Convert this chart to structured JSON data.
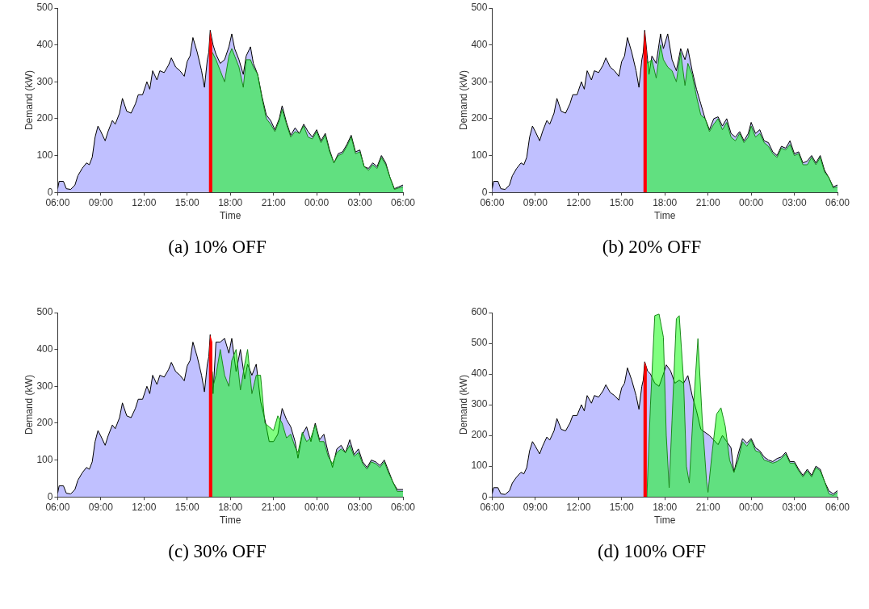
{
  "chart_data": [
    {
      "type": "area",
      "title": "(a) 10% OFF",
      "xlabel": "Time",
      "ylabel": "Demand (kW)",
      "xlim": [
        "2000-01-01T06:00",
        "2000-01-02T06:00"
      ],
      "ylim": [
        0,
        500
      ],
      "xticks": [
        {
          "value": "2000-01-01T06:00",
          "label": "06:00"
        },
        {
          "value": "2000-01-01T09:00",
          "label": "09:00"
        },
        {
          "value": "2000-01-01T12:00",
          "label": "12:00"
        },
        {
          "value": "2000-01-01T15:00",
          "label": "15:00"
        },
        {
          "value": "2000-01-01T18:00",
          "label": "18:00"
        },
        {
          "value": "2000-01-01T21:00",
          "label": "21:00"
        },
        {
          "value": "2000-01-02T00:00",
          "label": "00:00"
        },
        {
          "value": "2000-01-02T03:00",
          "label": "03:00"
        },
        {
          "value": "2000-01-02T06:00",
          "label": "06:00"
        }
      ],
      "yticks": [
        0,
        100,
        200,
        300,
        400,
        500
      ],
      "grid": false,
      "legend": false,
      "series": [
        {
          "color": "#c0c0ff",
          "x": [
            "2000-01-01T06:00",
            "2000-01-01T06:06",
            "2000-01-01T06:24",
            "2000-01-01T06:36",
            "2000-01-01T06:54",
            "2000-01-01T07:12",
            "2000-01-01T07:24",
            "2000-01-01T07:42",
            "2000-01-01T08:00",
            "2000-01-01T08:12",
            "2000-01-01T08:24",
            "2000-01-01T08:36",
            "2000-01-01T08:48",
            "2000-01-01T09:00",
            "2000-01-01T09:18",
            "2000-01-01T09:30",
            "2000-01-01T09:48",
            "2000-01-01T10:00",
            "2000-01-01T10:18",
            "2000-01-01T10:30",
            "2000-01-01T10:48",
            "2000-01-01T11:06",
            "2000-01-01T11:24",
            "2000-01-01T11:36",
            "2000-01-01T11:54",
            "2000-01-01T12:12",
            "2000-01-01T12:24",
            "2000-01-01T12:36",
            "2000-01-01T12:54",
            "2000-01-01T13:06",
            "2000-01-01T13:24",
            "2000-01-01T13:42",
            "2000-01-01T13:54",
            "2000-01-01T14:12",
            "2000-01-01T14:30",
            "2000-01-01T14:48",
            "2000-01-01T15:00",
            "2000-01-01T15:12",
            "2000-01-01T15:24",
            "2000-01-01T15:42",
            "2000-01-01T16:00",
            "2000-01-01T16:12",
            "2000-01-01T16:24",
            "2000-01-01T16:30",
            "2000-01-01T16:36",
            "2000-01-01T16:48",
            "2000-01-01T17:00",
            "2000-01-01T17:18",
            "2000-01-01T17:36",
            "2000-01-01T17:54",
            "2000-01-01T18:06",
            "2000-01-01T18:18",
            "2000-01-01T18:36",
            "2000-01-01T18:54",
            "2000-01-01T19:06",
            "2000-01-01T19:24",
            "2000-01-01T19:36",
            "2000-01-01T19:54",
            "2000-01-01T20:12",
            "2000-01-01T20:30",
            "2000-01-01T20:48",
            "2000-01-01T21:06",
            "2000-01-01T21:24",
            "2000-01-01T21:36",
            "2000-01-01T21:54",
            "2000-01-01T22:12",
            "2000-01-01T22:30",
            "2000-01-01T22:48",
            "2000-01-01T23:06",
            "2000-01-01T23:24",
            "2000-01-01T23:42",
            "2000-01-02T00:00",
            "2000-01-02T00:18",
            "2000-01-02T00:36",
            "2000-01-02T00:54",
            "2000-01-02T01:12",
            "2000-01-02T01:30",
            "2000-01-02T01:48",
            "2000-01-02T02:06",
            "2000-01-02T02:24",
            "2000-01-02T02:42",
            "2000-01-02T03:00",
            "2000-01-02T03:18",
            "2000-01-02T03:36",
            "2000-01-02T03:54",
            "2000-01-02T04:12",
            "2000-01-02T04:30",
            "2000-01-02T04:48",
            "2000-01-02T05:06",
            "2000-01-02T05:24",
            "2000-01-02T05:42",
            "2000-01-02T06:00"
          ],
          "values": [
            10,
            30,
            30,
            10,
            8,
            20,
            45,
            65,
            80,
            75,
            95,
            150,
            180,
            165,
            140,
            165,
            195,
            185,
            215,
            255,
            220,
            215,
            240,
            265,
            265,
            300,
            280,
            330,
            305,
            330,
            325,
            345,
            365,
            340,
            330,
            315,
            355,
            370,
            420,
            380,
            330,
            285,
            360,
            380,
            440,
            400,
            375,
            350,
            360,
            395,
            430,
            390,
            360,
            320,
            370,
            395,
            350,
            320,
            260,
            210,
            195,
            170,
            200,
            235,
            190,
            155,
            175,
            160,
            185,
            165,
            150,
            170,
            140,
            160,
            115,
            80,
            105,
            110,
            130,
            155,
            110,
            115,
            70,
            65,
            80,
            70,
            100,
            80,
            40,
            10,
            15,
            20
          ]
        },
        {
          "color": "#ff0000",
          "x": [
            "2000-01-01T16:30",
            "2000-01-01T16:36",
            "2000-01-01T16:45"
          ],
          "values": [
            380,
            440,
            400
          ]
        },
        {
          "color": "#80ff80",
          "x": [
            "2000-01-01T16:45",
            "2000-01-01T17:00",
            "2000-01-01T17:18",
            "2000-01-01T17:36",
            "2000-01-01T17:54",
            "2000-01-01T18:06",
            "2000-01-01T18:18",
            "2000-01-01T18:36",
            "2000-01-01T18:54",
            "2000-01-01T19:06",
            "2000-01-01T19:24",
            "2000-01-01T19:36",
            "2000-01-01T19:54",
            "2000-01-01T20:12",
            "2000-01-01T20:30",
            "2000-01-01T20:48",
            "2000-01-01T21:06",
            "2000-01-01T21:24",
            "2000-01-01T21:36",
            "2000-01-01T21:54",
            "2000-01-01T22:12",
            "2000-01-01T22:30",
            "2000-01-01T22:48",
            "2000-01-01T23:06",
            "2000-01-01T23:24",
            "2000-01-01T23:42",
            "2000-01-02T00:00",
            "2000-01-02T00:18",
            "2000-01-02T00:36",
            "2000-01-02T00:54",
            "2000-01-02T01:12",
            "2000-01-02T01:30",
            "2000-01-02T01:48",
            "2000-01-02T02:06",
            "2000-01-02T02:24",
            "2000-01-02T02:42",
            "2000-01-02T03:00",
            "2000-01-02T03:18",
            "2000-01-02T03:36",
            "2000-01-02T03:54",
            "2000-01-02T04:12",
            "2000-01-02T04:30",
            "2000-01-02T04:48",
            "2000-01-02T05:06",
            "2000-01-02T05:24",
            "2000-01-02T05:42",
            "2000-01-02T06:00"
          ],
          "values": [
            380,
            360,
            330,
            300,
            370,
            390,
            370,
            340,
            285,
            360,
            360,
            340,
            320,
            255,
            200,
            185,
            165,
            195,
            225,
            185,
            150,
            165,
            160,
            180,
            150,
            145,
            165,
            135,
            155,
            110,
            80,
            100,
            105,
            125,
            150,
            105,
            110,
            70,
            60,
            75,
            65,
            95,
            75,
            40,
            8,
            12,
            15
          ]
        }
      ]
    },
    {
      "type": "area",
      "title": "(b) 20% OFF",
      "xlabel": "Time",
      "ylabel": "Demand (kW)",
      "xlim": [
        "2000-01-01T06:00",
        "2000-01-02T06:00"
      ],
      "ylim": [
        0,
        500
      ],
      "xticks": [
        {
          "value": "2000-01-01T06:00",
          "label": "06:00"
        },
        {
          "value": "2000-01-01T09:00",
          "label": "09:00"
        },
        {
          "value": "2000-01-01T12:00",
          "label": "12:00"
        },
        {
          "value": "2000-01-01T15:00",
          "label": "15:00"
        },
        {
          "value": "2000-01-01T18:00",
          "label": "18:00"
        },
        {
          "value": "2000-01-01T21:00",
          "label": "21:00"
        },
        {
          "value": "2000-01-02T00:00",
          "label": "00:00"
        },
        {
          "value": "2000-01-02T03:00",
          "label": "03:00"
        },
        {
          "value": "2000-01-02T06:00",
          "label": "06:00"
        }
      ],
      "yticks": [
        0,
        100,
        200,
        300,
        400,
        500
      ],
      "grid": false,
      "legend": false,
      "series": [
        {
          "color": "#c0c0ff",
          "x": [
            "2000-01-01T06:00",
            "2000-01-01T06:06",
            "2000-01-01T06:24",
            "2000-01-01T06:36",
            "2000-01-01T06:54",
            "2000-01-01T07:12",
            "2000-01-01T07:24",
            "2000-01-01T07:42",
            "2000-01-01T08:00",
            "2000-01-01T08:12",
            "2000-01-01T08:24",
            "2000-01-01T08:36",
            "2000-01-01T08:48",
            "2000-01-01T09:00",
            "2000-01-01T09:18",
            "2000-01-01T09:30",
            "2000-01-01T09:48",
            "2000-01-01T10:00",
            "2000-01-01T10:18",
            "2000-01-01T10:30",
            "2000-01-01T10:48",
            "2000-01-01T11:06",
            "2000-01-01T11:24",
            "2000-01-01T11:36",
            "2000-01-01T11:54",
            "2000-01-01T12:12",
            "2000-01-01T12:24",
            "2000-01-01T12:36",
            "2000-01-01T12:54",
            "2000-01-01T13:06",
            "2000-01-01T13:24",
            "2000-01-01T13:42",
            "2000-01-01T13:54",
            "2000-01-01T14:12",
            "2000-01-01T14:30",
            "2000-01-01T14:48",
            "2000-01-01T15:00",
            "2000-01-01T15:12",
            "2000-01-01T15:24",
            "2000-01-01T15:42",
            "2000-01-01T16:00",
            "2000-01-01T16:12",
            "2000-01-01T16:24",
            "2000-01-01T16:30",
            "2000-01-01T16:36",
            "2000-01-01T16:48",
            "2000-01-01T16:54",
            "2000-01-01T17:06",
            "2000-01-01T17:24",
            "2000-01-01T17:42",
            "2000-01-01T17:54",
            "2000-01-01T18:12",
            "2000-01-01T18:30",
            "2000-01-01T18:48",
            "2000-01-01T19:06",
            "2000-01-01T19:24",
            "2000-01-01T19:36",
            "2000-01-01T19:54",
            "2000-01-01T20:12",
            "2000-01-01T20:30",
            "2000-01-01T20:48",
            "2000-01-01T21:06",
            "2000-01-01T21:24",
            "2000-01-01T21:42",
            "2000-01-01T22:00",
            "2000-01-01T22:18",
            "2000-01-01T22:36",
            "2000-01-01T22:54",
            "2000-01-01T23:12",
            "2000-01-01T23:30",
            "2000-01-01T23:48",
            "2000-01-02T00:00",
            "2000-01-02T00:18",
            "2000-01-02T00:36",
            "2000-01-02T00:54",
            "2000-01-02T01:12",
            "2000-01-02T01:30",
            "2000-01-02T01:48",
            "2000-01-02T02:06",
            "2000-01-02T02:24",
            "2000-01-02T02:42",
            "2000-01-02T03:00",
            "2000-01-02T03:18",
            "2000-01-02T03:36",
            "2000-01-02T03:54",
            "2000-01-02T04:12",
            "2000-01-02T04:30",
            "2000-01-02T04:48",
            "2000-01-02T05:06",
            "2000-01-02T05:24",
            "2000-01-02T05:42",
            "2000-01-02T06:00"
          ],
          "values": [
            10,
            30,
            30,
            10,
            8,
            20,
            45,
            65,
            80,
            75,
            95,
            150,
            180,
            165,
            140,
            165,
            195,
            185,
            215,
            255,
            220,
            215,
            240,
            265,
            265,
            300,
            280,
            330,
            305,
            330,
            325,
            345,
            365,
            340,
            330,
            315,
            355,
            370,
            420,
            380,
            330,
            285,
            360,
            380,
            440,
            360,
            320,
            370,
            350,
            430,
            390,
            430,
            360,
            330,
            390,
            360,
            390,
            330,
            280,
            240,
            200,
            170,
            200,
            205,
            180,
            200,
            160,
            150,
            165,
            140,
            160,
            190,
            160,
            170,
            140,
            135,
            110,
            100,
            125,
            120,
            140,
            105,
            110,
            80,
            85,
            100,
            80,
            100,
            60,
            40,
            15,
            20
          ]
        },
        {
          "color": "#ff0000",
          "x": [
            "2000-01-01T16:30",
            "2000-01-01T16:36",
            "2000-01-01T16:45"
          ],
          "values": [
            380,
            440,
            380
          ]
        },
        {
          "color": "#80ff80",
          "x": [
            "2000-01-01T16:45",
            "2000-01-01T16:48",
            "2000-01-01T17:06",
            "2000-01-01T17:24",
            "2000-01-01T17:42",
            "2000-01-01T17:54",
            "2000-01-01T18:12",
            "2000-01-01T18:30",
            "2000-01-01T18:48",
            "2000-01-01T19:06",
            "2000-01-01T19:24",
            "2000-01-01T19:36",
            "2000-01-01T19:54",
            "2000-01-01T20:12",
            "2000-01-01T20:30",
            "2000-01-01T20:48",
            "2000-01-01T21:06",
            "2000-01-01T21:24",
            "2000-01-01T21:42",
            "2000-01-01T22:00",
            "2000-01-01T22:18",
            "2000-01-01T22:36",
            "2000-01-01T22:54",
            "2000-01-01T23:12",
            "2000-01-01T23:30",
            "2000-01-01T23:48",
            "2000-01-02T00:00",
            "2000-01-02T00:18",
            "2000-01-02T00:36",
            "2000-01-02T00:54",
            "2000-01-02T01:12",
            "2000-01-02T01:30",
            "2000-01-02T01:48",
            "2000-01-02T02:06",
            "2000-01-02T02:24",
            "2000-01-02T02:42",
            "2000-01-02T03:00",
            "2000-01-02T03:18",
            "2000-01-02T03:36",
            "2000-01-02T03:54",
            "2000-01-02T04:12",
            "2000-01-02T04:30",
            "2000-01-02T04:48",
            "2000-01-02T05:06",
            "2000-01-02T05:24",
            "2000-01-02T05:42",
            "2000-01-02T06:00"
          ],
          "values": [
            360,
            350,
            360,
            310,
            400,
            360,
            340,
            330,
            300,
            380,
            290,
            350,
            320,
            260,
            210,
            200,
            165,
            185,
            200,
            170,
            190,
            150,
            140,
            160,
            135,
            150,
            180,
            150,
            160,
            135,
            125,
            105,
            95,
            120,
            115,
            130,
            100,
            105,
            75,
            75,
            95,
            75,
            95,
            55,
            40,
            12,
            15
          ]
        }
      ]
    },
    {
      "type": "area",
      "title": "(c) 30% OFF",
      "xlabel": "Time",
      "ylabel": "Demand (kW)",
      "xlim": [
        "2000-01-01T06:00",
        "2000-01-02T06:00"
      ],
      "ylim": [
        0,
        500
      ],
      "xticks": [
        {
          "value": "2000-01-01T06:00",
          "label": "06:00"
        },
        {
          "value": "2000-01-01T09:00",
          "label": "09:00"
        },
        {
          "value": "2000-01-01T12:00",
          "label": "12:00"
        },
        {
          "value": "2000-01-01T15:00",
          "label": "15:00"
        },
        {
          "value": "2000-01-01T18:00",
          "label": "18:00"
        },
        {
          "value": "2000-01-01T21:00",
          "label": "21:00"
        },
        {
          "value": "2000-01-02T00:00",
          "label": "00:00"
        },
        {
          "value": "2000-01-02T03:00",
          "label": "03:00"
        },
        {
          "value": "2000-01-02T06:00",
          "label": "06:00"
        }
      ],
      "yticks": [
        0,
        100,
        200,
        300,
        400,
        500
      ],
      "grid": false,
      "legend": false,
      "series": [
        {
          "color": "#c0c0ff",
          "x": [
            "2000-01-01T06:00",
            "2000-01-01T06:06",
            "2000-01-01T06:24",
            "2000-01-01T06:36",
            "2000-01-01T06:54",
            "2000-01-01T07:12",
            "2000-01-01T07:24",
            "2000-01-01T07:42",
            "2000-01-01T08:00",
            "2000-01-01T08:12",
            "2000-01-01T08:24",
            "2000-01-01T08:36",
            "2000-01-01T08:48",
            "2000-01-01T09:00",
            "2000-01-01T09:18",
            "2000-01-01T09:30",
            "2000-01-01T09:48",
            "2000-01-01T10:00",
            "2000-01-01T10:18",
            "2000-01-01T10:30",
            "2000-01-01T10:48",
            "2000-01-01T11:06",
            "2000-01-01T11:24",
            "2000-01-01T11:36",
            "2000-01-01T11:54",
            "2000-01-01T12:12",
            "2000-01-01T12:24",
            "2000-01-01T12:36",
            "2000-01-01T12:54",
            "2000-01-01T13:06",
            "2000-01-01T13:24",
            "2000-01-01T13:42",
            "2000-01-01T13:54",
            "2000-01-01T14:12",
            "2000-01-01T14:30",
            "2000-01-01T14:48",
            "2000-01-01T15:00",
            "2000-01-01T15:12",
            "2000-01-01T15:24",
            "2000-01-01T15:42",
            "2000-01-01T16:00",
            "2000-01-01T16:12",
            "2000-01-01T16:24",
            "2000-01-01T16:30",
            "2000-01-01T16:36",
            "2000-01-01T16:48",
            "2000-01-01T17:00",
            "2000-01-01T17:18",
            "2000-01-01T17:36",
            "2000-01-01T17:54",
            "2000-01-01T18:06",
            "2000-01-01T18:24",
            "2000-01-01T18:42",
            "2000-01-01T19:00",
            "2000-01-01T19:12",
            "2000-01-01T19:30",
            "2000-01-01T19:48",
            "2000-01-01T20:06",
            "2000-01-01T20:24",
            "2000-01-01T20:42",
            "2000-01-01T21:00",
            "2000-01-01T21:18",
            "2000-01-01T21:36",
            "2000-01-01T21:54",
            "2000-01-01T22:12",
            "2000-01-01T22:30",
            "2000-01-01T22:42",
            "2000-01-01T23:00",
            "2000-01-01T23:18",
            "2000-01-01T23:36",
            "2000-01-01T23:54",
            "2000-01-02T00:12",
            "2000-01-02T00:30",
            "2000-01-02T00:48",
            "2000-01-02T01:06",
            "2000-01-02T01:24",
            "2000-01-02T01:42",
            "2000-01-02T02:00",
            "2000-01-02T02:18",
            "2000-01-02T02:36",
            "2000-01-02T02:54",
            "2000-01-02T03:12",
            "2000-01-02T03:30",
            "2000-01-02T03:48",
            "2000-01-02T04:06",
            "2000-01-02T04:24",
            "2000-01-02T04:42",
            "2000-01-02T05:00",
            "2000-01-02T05:18",
            "2000-01-02T05:36",
            "2000-01-02T06:00"
          ],
          "values": [
            10,
            30,
            30,
            10,
            8,
            20,
            45,
            65,
            80,
            75,
            95,
            150,
            180,
            165,
            140,
            165,
            195,
            185,
            215,
            255,
            220,
            215,
            240,
            265,
            265,
            300,
            280,
            330,
            305,
            330,
            325,
            345,
            365,
            340,
            330,
            315,
            355,
            370,
            420,
            380,
            330,
            285,
            360,
            380,
            440,
            280,
            420,
            420,
            430,
            390,
            430,
            340,
            400,
            320,
            360,
            330,
            360,
            260,
            210,
            150,
            150,
            170,
            240,
            210,
            190,
            150,
            105,
            170,
            190,
            150,
            200,
            155,
            170,
            120,
            80,
            130,
            140,
            120,
            155,
            115,
            130,
            95,
            80,
            100,
            95,
            85,
            100,
            70,
            40,
            20,
            20
          ]
        },
        {
          "color": "#ff0000",
          "x": [
            "2000-01-01T16:30",
            "2000-01-01T16:36",
            "2000-01-01T16:45"
          ],
          "values": [
            380,
            440,
            420
          ]
        },
        {
          "color": "#80ff80",
          "x": [
            "2000-01-01T16:45",
            "2000-01-01T16:48",
            "2000-01-01T17:00",
            "2000-01-01T17:18",
            "2000-01-01T17:36",
            "2000-01-01T17:54",
            "2000-01-01T18:06",
            "2000-01-01T18:24",
            "2000-01-01T18:42",
            "2000-01-01T19:00",
            "2000-01-01T19:12",
            "2000-01-01T19:30",
            "2000-01-01T19:48",
            "2000-01-01T20:06",
            "2000-01-01T20:24",
            "2000-01-01T20:42",
            "2000-01-01T21:00",
            "2000-01-01T21:18",
            "2000-01-01T21:36",
            "2000-01-01T21:54",
            "2000-01-01T22:12",
            "2000-01-01T22:30",
            "2000-01-01T22:42",
            "2000-01-01T23:00",
            "2000-01-01T23:18",
            "2000-01-01T23:36",
            "2000-01-01T23:54",
            "2000-01-02T00:12",
            "2000-01-02T00:30",
            "2000-01-02T00:48",
            "2000-01-02T01:06",
            "2000-01-02T01:24",
            "2000-01-02T01:42",
            "2000-01-02T02:00",
            "2000-01-02T02:18",
            "2000-01-02T02:36",
            "2000-01-02T02:54",
            "2000-01-02T03:12",
            "2000-01-02T03:30",
            "2000-01-02T03:48",
            "2000-01-02T04:06",
            "2000-01-02T04:24",
            "2000-01-02T04:42",
            "2000-01-02T05:00",
            "2000-01-02T05:18",
            "2000-01-02T05:36",
            "2000-01-02T06:00"
          ],
          "values": [
            340,
            300,
            330,
            400,
            330,
            300,
            370,
            400,
            290,
            360,
            400,
            280,
            330,
            330,
            200,
            190,
            180,
            220,
            200,
            160,
            170,
            135,
            120,
            175,
            150,
            160,
            195,
            150,
            150,
            110,
            90,
            120,
            130,
            120,
            140,
            110,
            120,
            90,
            75,
            95,
            90,
            80,
            95,
            65,
            40,
            15,
            15
          ]
        }
      ]
    },
    {
      "type": "area",
      "title": "(d) 100% OFF",
      "xlabel": "Time",
      "ylabel": "Demand (kW)",
      "xlim": [
        "2000-01-01T06:00",
        "2000-01-02T06:00"
      ],
      "ylim": [
        0,
        600
      ],
      "xticks": [
        {
          "value": "2000-01-01T06:00",
          "label": "06:00"
        },
        {
          "value": "2000-01-01T09:00",
          "label": "09:00"
        },
        {
          "value": "2000-01-01T12:00",
          "label": "12:00"
        },
        {
          "value": "2000-01-01T15:00",
          "label": "15:00"
        },
        {
          "value": "2000-01-01T18:00",
          "label": "18:00"
        },
        {
          "value": "2000-01-01T21:00",
          "label": "21:00"
        },
        {
          "value": "2000-01-02T00:00",
          "label": "00:00"
        },
        {
          "value": "2000-01-02T03:00",
          "label": "03:00"
        },
        {
          "value": "2000-01-02T06:00",
          "label": "06:00"
        }
      ],
      "yticks": [
        0,
        100,
        200,
        300,
        400,
        500,
        600
      ],
      "grid": false,
      "legend": false,
      "series": [
        {
          "color": "#c0c0ff",
          "x": [
            "2000-01-01T06:00",
            "2000-01-01T06:06",
            "2000-01-01T06:24",
            "2000-01-01T06:36",
            "2000-01-01T06:54",
            "2000-01-01T07:12",
            "2000-01-01T07:24",
            "2000-01-01T07:42",
            "2000-01-01T08:00",
            "2000-01-01T08:12",
            "2000-01-01T08:24",
            "2000-01-01T08:36",
            "2000-01-01T08:48",
            "2000-01-01T09:00",
            "2000-01-01T09:18",
            "2000-01-01T09:30",
            "2000-01-01T09:48",
            "2000-01-01T10:00",
            "2000-01-01T10:18",
            "2000-01-01T10:30",
            "2000-01-01T10:48",
            "2000-01-01T11:06",
            "2000-01-01T11:24",
            "2000-01-01T11:36",
            "2000-01-01T11:54",
            "2000-01-01T12:12",
            "2000-01-01T12:24",
            "2000-01-01T12:36",
            "2000-01-01T12:54",
            "2000-01-01T13:06",
            "2000-01-01T13:24",
            "2000-01-01T13:42",
            "2000-01-01T13:54",
            "2000-01-01T14:12",
            "2000-01-01T14:30",
            "2000-01-01T14:48",
            "2000-01-01T15:00",
            "2000-01-01T15:12",
            "2000-01-01T15:24",
            "2000-01-01T15:42",
            "2000-01-01T16:00",
            "2000-01-01T16:12",
            "2000-01-01T16:24",
            "2000-01-01T16:30",
            "2000-01-01T16:36",
            "2000-01-01T16:48",
            "2000-01-01T17:00",
            "2000-01-01T17:18",
            "2000-01-01T17:36",
            "2000-01-01T17:54",
            "2000-01-01T18:06",
            "2000-01-01T18:24",
            "2000-01-01T18:42",
            "2000-01-01T19:00",
            "2000-01-01T19:18",
            "2000-01-01T19:36",
            "2000-01-01T19:54",
            "2000-01-01T20:12",
            "2000-01-01T20:30",
            "2000-01-01T20:48",
            "2000-01-01T21:06",
            "2000-01-01T21:24",
            "2000-01-01T21:42",
            "2000-01-01T22:00",
            "2000-01-01T22:18",
            "2000-01-01T22:36",
            "2000-01-01T22:48",
            "2000-01-01T23:06",
            "2000-01-01T23:24",
            "2000-01-01T23:42",
            "2000-01-02T00:00",
            "2000-01-02T00:18",
            "2000-01-02T00:36",
            "2000-01-02T00:54",
            "2000-01-02T01:12",
            "2000-01-02T01:30",
            "2000-01-02T01:48",
            "2000-01-02T02:06",
            "2000-01-02T02:24",
            "2000-01-02T02:42",
            "2000-01-02T03:00",
            "2000-01-02T03:18",
            "2000-01-02T03:36",
            "2000-01-02T03:54",
            "2000-01-02T04:12",
            "2000-01-02T04:30",
            "2000-01-02T04:48",
            "2000-01-02T05:06",
            "2000-01-02T05:24",
            "2000-01-02T05:42",
            "2000-01-02T06:00"
          ],
          "values": [
            10,
            30,
            30,
            10,
            8,
            20,
            45,
            65,
            80,
            75,
            95,
            150,
            180,
            165,
            140,
            165,
            195,
            185,
            215,
            255,
            220,
            215,
            240,
            265,
            265,
            300,
            280,
            330,
            305,
            330,
            325,
            345,
            365,
            340,
            330,
            315,
            355,
            370,
            420,
            380,
            330,
            285,
            360,
            380,
            440,
            410,
            400,
            370,
            360,
            400,
            430,
            410,
            370,
            380,
            370,
            395,
            330,
            280,
            220,
            210,
            200,
            185,
            170,
            200,
            180,
            160,
            80,
            140,
            190,
            175,
            190,
            160,
            150,
            130,
            120,
            115,
            125,
            130,
            145,
            115,
            115,
            90,
            70,
            90,
            70,
            100,
            90,
            50,
            20,
            10,
            20
          ]
        },
        {
          "color": "#ff0000",
          "x": [
            "2000-01-01T16:30",
            "2000-01-01T16:36",
            "2000-01-01T16:45"
          ],
          "values": [
            380,
            440,
            420
          ]
        },
        {
          "color": "#80ff80",
          "x": [
            "2000-01-01T16:45",
            "2000-01-01T17:00",
            "2000-01-01T17:18",
            "2000-01-01T17:36",
            "2000-01-01T17:54",
            "2000-01-01T18:06",
            "2000-01-01T18:18",
            "2000-01-01T18:30",
            "2000-01-01T18:48",
            "2000-01-01T19:00",
            "2000-01-01T19:18",
            "2000-01-01T19:30",
            "2000-01-01T19:42",
            "2000-01-01T20:00",
            "2000-01-01T20:18",
            "2000-01-01T20:36",
            "2000-01-01T20:54",
            "2000-01-01T21:00",
            "2000-01-01T21:18",
            "2000-01-01T21:36",
            "2000-01-01T21:54",
            "2000-01-01T22:12",
            "2000-01-01T22:30",
            "2000-01-01T22:48",
            "2000-01-01T23:06",
            "2000-01-01T23:24",
            "2000-01-01T23:42",
            "2000-01-02T00:00",
            "2000-01-02T00:18",
            "2000-01-02T00:36",
            "2000-01-02T00:54",
            "2000-01-02T01:12",
            "2000-01-02T01:30",
            "2000-01-02T01:48",
            "2000-01-02T02:06",
            "2000-01-02T02:24",
            "2000-01-02T02:42",
            "2000-01-02T03:00",
            "2000-01-02T03:18",
            "2000-01-02T03:36",
            "2000-01-02T03:54",
            "2000-01-02T04:12",
            "2000-01-02T04:30",
            "2000-01-02T04:48",
            "2000-01-02T05:06",
            "2000-01-02T05:24",
            "2000-01-02T05:42",
            "2000-01-02T06:00"
          ],
          "values": [
            0,
            300,
            590,
            595,
            520,
            200,
            30,
            250,
            580,
            590,
            380,
            100,
            45,
            300,
            515,
            250,
            50,
            15,
            150,
            270,
            290,
            230,
            120,
            80,
            120,
            180,
            165,
            185,
            150,
            145,
            120,
            115,
            110,
            115,
            125,
            140,
            110,
            110,
            85,
            65,
            85,
            65,
            95,
            85,
            50,
            10,
            5,
            15
          ]
        }
      ]
    }
  ]
}
